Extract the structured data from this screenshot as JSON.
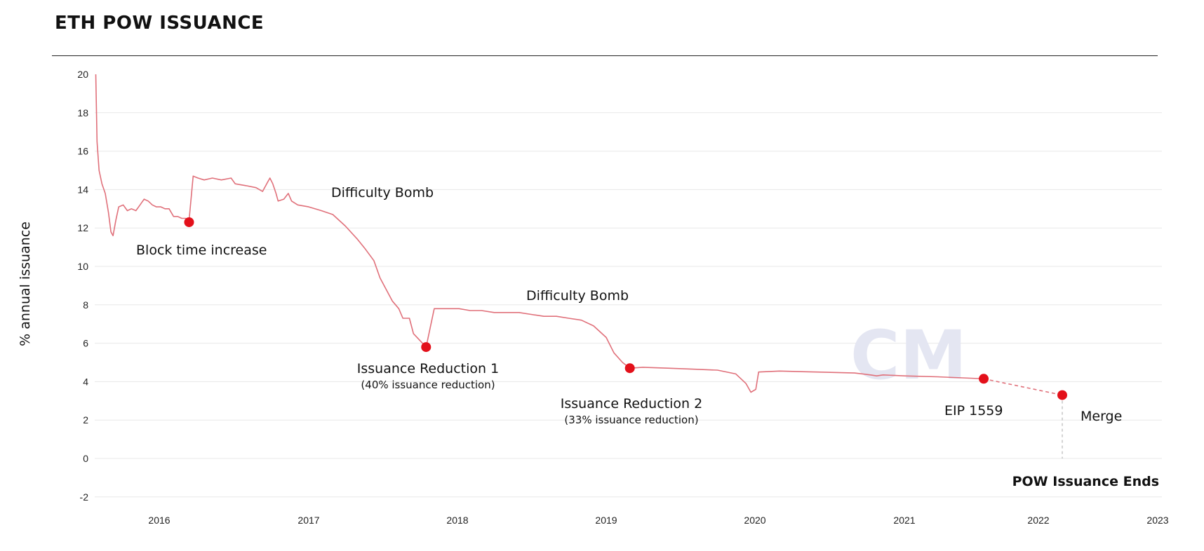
{
  "page": {
    "title": "ETH POW ISSUANCE",
    "watermark": "CM"
  },
  "chart_data": {
    "type": "line",
    "title": "ETH POW ISSUANCE",
    "xlabel": "",
    "ylabel": "% annual issuance",
    "ylim": [
      -2,
      20
    ],
    "xlim": [
      "2015-07-30",
      "2023-01-01"
    ],
    "grid": true,
    "colors": {
      "line": "#e0707a",
      "marker": "#e3101a",
      "projection": "#e0707a"
    },
    "x_ticks": [
      "2016",
      "2017",
      "2018",
      "2019",
      "2020",
      "2021",
      "2022",
      "2023"
    ],
    "y_ticks": [
      "20",
      "18",
      "16",
      "14",
      "12",
      "10",
      "8",
      "6",
      "4",
      "2",
      "0",
      "-2"
    ],
    "series": [
      {
        "style": "solid",
        "points": [
          [
            "2015-07-30",
            20.0
          ],
          [
            "2015-08-02",
            16.5
          ],
          [
            "2015-08-07",
            15.0
          ],
          [
            "2015-08-14",
            14.3
          ],
          [
            "2015-08-22",
            13.8
          ],
          [
            "2015-08-30",
            12.8
          ],
          [
            "2015-09-05",
            11.8
          ],
          [
            "2015-09-10",
            11.6
          ],
          [
            "2015-09-17",
            12.4
          ],
          [
            "2015-09-24",
            13.1
          ],
          [
            "2015-10-05",
            13.2
          ],
          [
            "2015-10-15",
            12.9
          ],
          [
            "2015-10-25",
            13.0
          ],
          [
            "2015-11-05",
            12.9
          ],
          [
            "2015-11-15",
            13.2
          ],
          [
            "2015-11-25",
            13.5
          ],
          [
            "2015-12-05",
            13.4
          ],
          [
            "2015-12-15",
            13.2
          ],
          [
            "2015-12-25",
            13.1
          ],
          [
            "2016-01-05",
            13.1
          ],
          [
            "2016-01-15",
            13.0
          ],
          [
            "2016-01-25",
            13.0
          ],
          [
            "2016-02-05",
            12.6
          ],
          [
            "2016-02-15",
            12.6
          ],
          [
            "2016-02-25",
            12.5
          ],
          [
            "2016-03-05",
            12.5
          ],
          [
            "2016-03-14",
            12.4
          ],
          [
            "2016-03-24",
            14.7
          ],
          [
            "2016-04-05",
            14.6
          ],
          [
            "2016-04-20",
            14.5
          ],
          [
            "2016-05-10",
            14.6
          ],
          [
            "2016-06-01",
            14.5
          ],
          [
            "2016-06-25",
            14.6
          ],
          [
            "2016-07-05",
            14.3
          ],
          [
            "2016-08-01",
            14.2
          ],
          [
            "2016-08-25",
            14.1
          ],
          [
            "2016-09-10",
            13.9
          ],
          [
            "2016-09-20",
            14.3
          ],
          [
            "2016-09-28",
            14.6
          ],
          [
            "2016-10-05",
            14.3
          ],
          [
            "2016-10-13",
            13.8
          ],
          [
            "2016-10-18",
            13.4
          ],
          [
            "2016-11-01",
            13.5
          ],
          [
            "2016-11-12",
            13.8
          ],
          [
            "2016-11-20",
            13.4
          ],
          [
            "2016-12-05",
            13.2
          ],
          [
            "2017-01-01",
            13.1
          ],
          [
            "2017-02-01",
            12.9
          ],
          [
            "2017-03-01",
            12.7
          ],
          [
            "2017-04-01",
            12.1
          ],
          [
            "2017-05-01",
            11.4
          ],
          [
            "2017-05-20",
            10.9
          ],
          [
            "2017-06-10",
            10.3
          ],
          [
            "2017-06-25",
            9.4
          ],
          [
            "2017-07-10",
            8.8
          ],
          [
            "2017-07-25",
            8.2
          ],
          [
            "2017-08-10",
            7.8
          ],
          [
            "2017-08-20",
            7.3
          ],
          [
            "2017-09-05",
            7.3
          ],
          [
            "2017-09-15",
            6.5
          ],
          [
            "2017-10-16",
            5.8
          ],
          [
            "2017-10-21",
            6.3
          ],
          [
            "2017-11-05",
            7.8
          ],
          [
            "2017-12-05",
            7.8
          ],
          [
            "2018-01-05",
            7.8
          ],
          [
            "2018-02-01",
            7.7
          ],
          [
            "2018-03-01",
            7.7
          ],
          [
            "2018-04-01",
            7.6
          ],
          [
            "2018-06-01",
            7.6
          ],
          [
            "2018-07-01",
            7.5
          ],
          [
            "2018-08-01",
            7.4
          ],
          [
            "2018-09-01",
            7.4
          ],
          [
            "2018-10-01",
            7.3
          ],
          [
            "2018-11-01",
            7.2
          ],
          [
            "2018-12-01",
            6.9
          ],
          [
            "2019-01-01",
            6.3
          ],
          [
            "2019-01-20",
            5.5
          ],
          [
            "2019-02-10",
            5.0
          ],
          [
            "2019-02-28",
            4.7
          ],
          [
            "2019-04-01",
            4.75
          ],
          [
            "2019-06-01",
            4.7
          ],
          [
            "2019-08-01",
            4.65
          ],
          [
            "2019-10-01",
            4.6
          ],
          [
            "2019-11-15",
            4.4
          ],
          [
            "2019-12-10",
            3.9
          ],
          [
            "2019-12-22",
            3.45
          ],
          [
            "2020-01-03",
            3.6
          ],
          [
            "2020-01-10",
            4.5
          ],
          [
            "2020-03-01",
            4.55
          ],
          [
            "2020-06-01",
            4.5
          ],
          [
            "2020-09-01",
            4.45
          ],
          [
            "2020-10-10",
            4.35
          ],
          [
            "2020-10-25",
            4.3
          ],
          [
            "2020-11-10",
            4.35
          ],
          [
            "2021-01-01",
            4.3
          ],
          [
            "2021-04-01",
            4.25
          ],
          [
            "2021-08-05",
            4.15
          ]
        ]
      },
      {
        "style": "dashed",
        "points": [
          [
            "2021-08-05",
            4.15
          ],
          [
            "2022-03-15",
            3.3
          ]
        ]
      }
    ],
    "events": [
      {
        "label": "Block time increase",
        "sublabel": "",
        "date": "2016-03-14",
        "y": 12.3
      },
      {
        "label": "Issuance Reduction 1",
        "sublabel": "(40% issuance reduction)",
        "date": "2017-10-16",
        "y": 5.8
      },
      {
        "label": "Issuance Reduction 2",
        "sublabel": "(33% issuance reduction)",
        "date": "2019-02-28",
        "y": 4.7
      },
      {
        "label": "EIP 1559",
        "sublabel": "",
        "date": "2021-08-05",
        "y": 4.15
      },
      {
        "label": "Merge",
        "sublabel": "",
        "date": "2022-03-15",
        "y": 3.3
      }
    ],
    "annotations": [
      "Difficulty Bomb",
      "Difficulty Bomb",
      "POW Issuance Ends"
    ]
  }
}
